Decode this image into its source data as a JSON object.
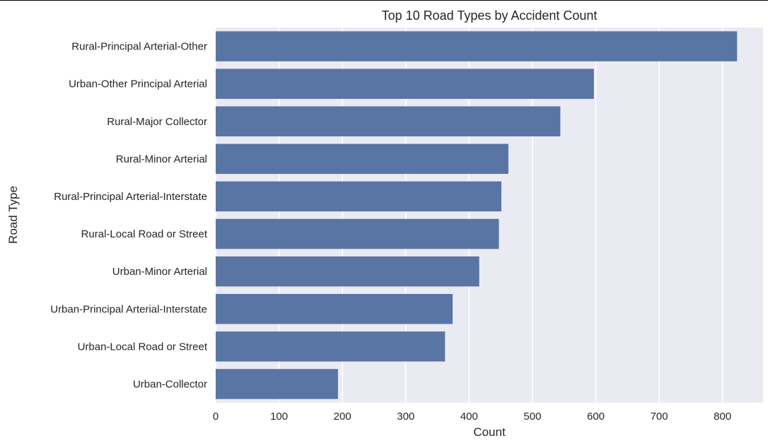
{
  "chart_data": {
    "type": "bar",
    "orientation": "horizontal",
    "title": "Top 10 Road Types by Accident Count",
    "xlabel": "Count",
    "ylabel": "Road Type",
    "categories": [
      "Rural-Principal Arterial-Other",
      "Urban-Other Principal Arterial",
      "Rural-Major Collector",
      "Rural-Minor Arterial",
      "Rural-Principal Arterial-Interstate",
      "Rural-Local Road or Street",
      "Urban-Minor Arterial",
      "Urban-Principal Arterial-Interstate",
      "Urban-Local Road or Street",
      "Urban-Collector"
    ],
    "values": [
      823,
      597,
      544,
      462,
      451,
      447,
      416,
      374,
      362,
      193
    ],
    "xlim": [
      0,
      864
    ],
    "xticks": [
      0,
      100,
      200,
      300,
      400,
      500,
      600,
      700,
      800
    ],
    "grid": true,
    "colors": {
      "bar": "#5875a4",
      "plot_background": "#eaeaf2",
      "grid": "#ffffff",
      "text": "#262626"
    }
  }
}
